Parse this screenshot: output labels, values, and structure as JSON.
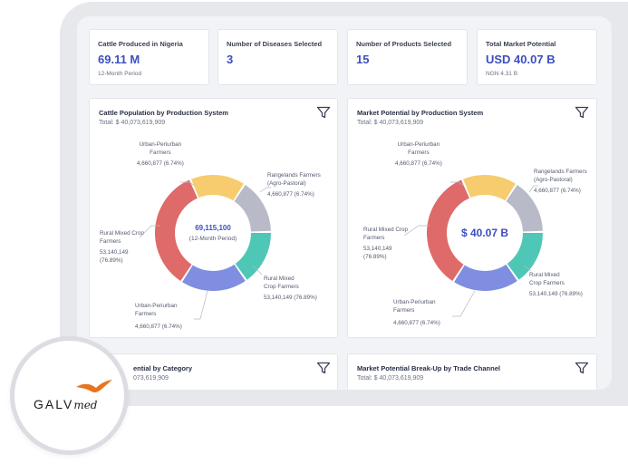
{
  "kpis": [
    {
      "label": "Cattle Produced in Nigeria",
      "value": "69.11 M",
      "sub": "12-Month Period"
    },
    {
      "label": "Number of Diseases Selected",
      "value": "3",
      "sub": ""
    },
    {
      "label": "Number of Products Selected",
      "value": "15",
      "sub": ""
    },
    {
      "label": "Total Market Potential",
      "value": "USD 40.07 B",
      "sub": "NGN 4.31 B"
    }
  ],
  "panels": {
    "cattle_population": {
      "title": "Cattle Population by Production System",
      "total": "Total: $ 40,073,619,909",
      "center_value": "69,115,100",
      "center_sub": "(12-Month Period)",
      "labels": {
        "top": [
          "Urban-Periurban",
          "Farmers",
          "4,660,877 (6.74%)"
        ],
        "right_top": [
          "Rangelands Farmers",
          "(Agro-Pastoral)",
          "4,660,877 (6.74%)"
        ],
        "left": [
          "Rural Mixed Crop",
          "Farmers",
          "53,140,149",
          "(76.89%)"
        ],
        "right_bottom": [
          "Rural Mixed",
          "Crop Farmers",
          "53,140,149 (76.89%)"
        ],
        "bottom": [
          "Urban-Periurban",
          "Farmers",
          "4,660,877 (6.74%)"
        ]
      }
    },
    "market_potential": {
      "title": "Market Potential by Production System",
      "total": "Total: $ 40,073,619,909",
      "center_value": "$ 40.07 B",
      "labels": {
        "top": [
          "Urban-Periurban",
          "Farmers",
          "4,660,877 (6.74%)"
        ],
        "right_top": [
          "Rangelands Farmers",
          "(Agro-Pastoral)",
          "4,660,877 (6.74%)"
        ],
        "left": [
          "Rural Mixed Crop",
          "Farmers",
          "53,140,149",
          "(76.89%)"
        ],
        "right_bottom": [
          "Rural Mixed",
          "Crop Farmers",
          "53,140,149 (76.89%)"
        ],
        "bottom": [
          "Urban-Periurban",
          "Farmers",
          "4,660,877 (6.74%)"
        ]
      }
    },
    "category": {
      "title": "ential by Category",
      "total": "073,619,909"
    },
    "trade_channel": {
      "title": "Market Potential Break-Up by Trade Channel",
      "total": "Total: $ 40,073,619,909"
    }
  },
  "donut_colors": {
    "yellow": "#f7cc6e",
    "gray": "#b8bbc7",
    "teal": "#4fc7b6",
    "blue": "#7f8ee0",
    "red": "#df6a6a"
  },
  "icons": {
    "filter": "filter-funnel-icon",
    "logo_bird": "bird-icon"
  },
  "logo": {
    "brand": "GALV",
    "suffix": "med"
  }
}
